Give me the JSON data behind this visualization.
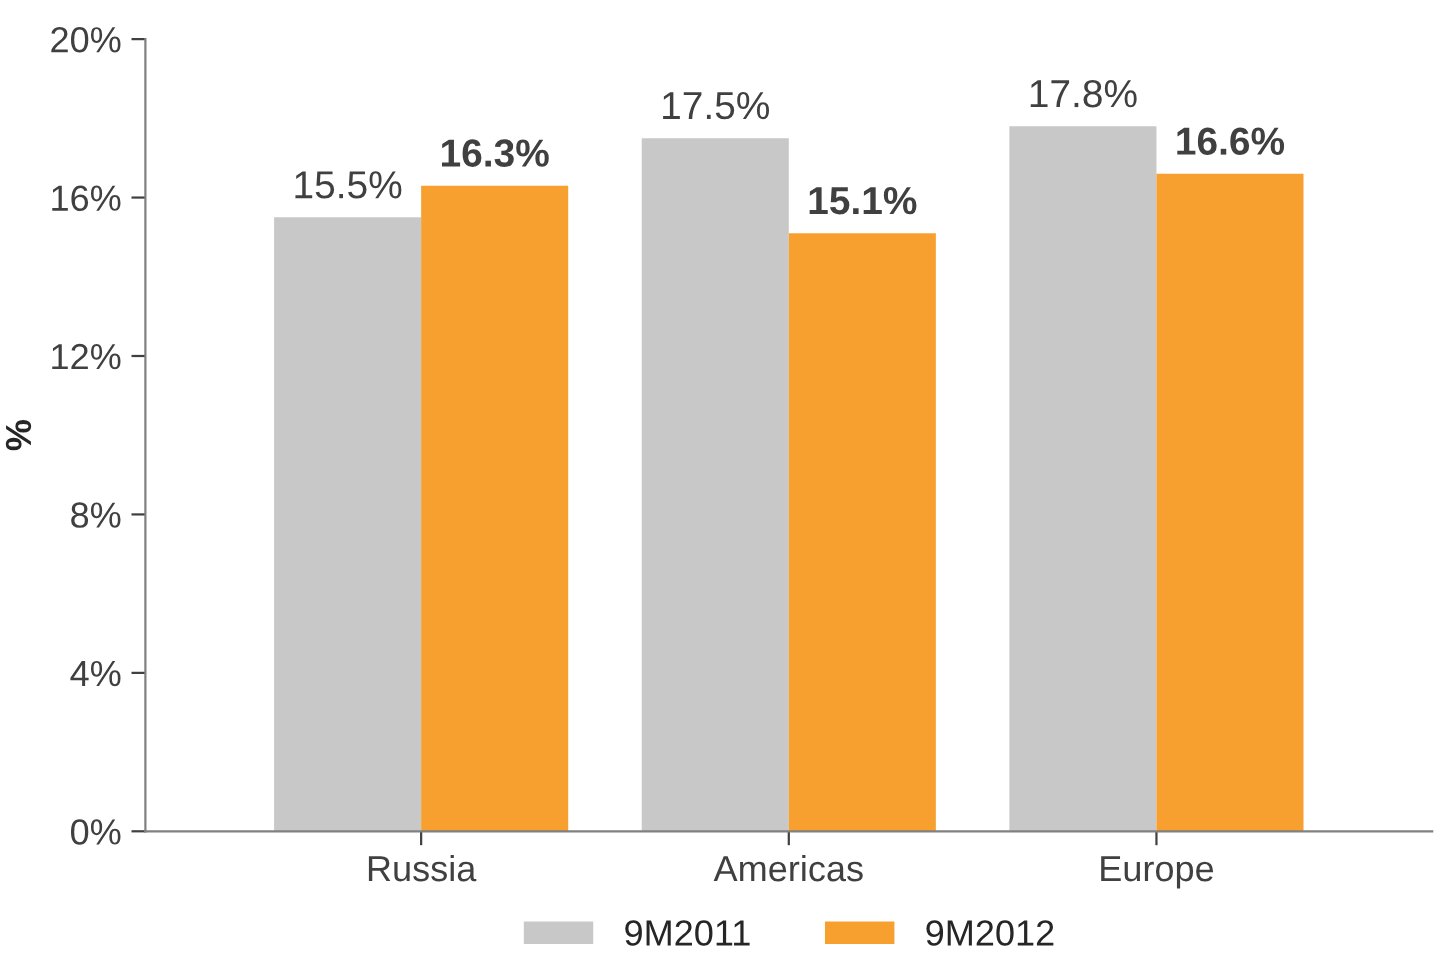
{
  "chart_data": {
    "type": "bar",
    "ylabel": "%",
    "categories": [
      "Russia",
      "Americas",
      "Europe"
    ],
    "series": [
      {
        "name": "9M2011",
        "color": "#c8c8c8",
        "values": [
          15.5,
          17.5,
          17.8
        ],
        "value_labels": [
          "15.5%",
          "17.5%",
          "17.8%"
        ]
      },
      {
        "name": "9M2012",
        "color": "#f7a030",
        "values": [
          16.3,
          15.1,
          16.6
        ],
        "value_labels": [
          "16.3%",
          "15.1%",
          "16.6%"
        ]
      }
    ],
    "ylim": [
      0,
      20
    ],
    "yticks": [
      {
        "value": 0,
        "label": "0%"
      },
      {
        "value": 4,
        "label": "4%"
      },
      {
        "value": 8,
        "label": "8%"
      },
      {
        "value": 12,
        "label": "12%"
      },
      {
        "value": 16,
        "label": "16%"
      },
      {
        "value": 20,
        "label": "20%"
      }
    ],
    "grid": false,
    "legend": "bottom"
  }
}
